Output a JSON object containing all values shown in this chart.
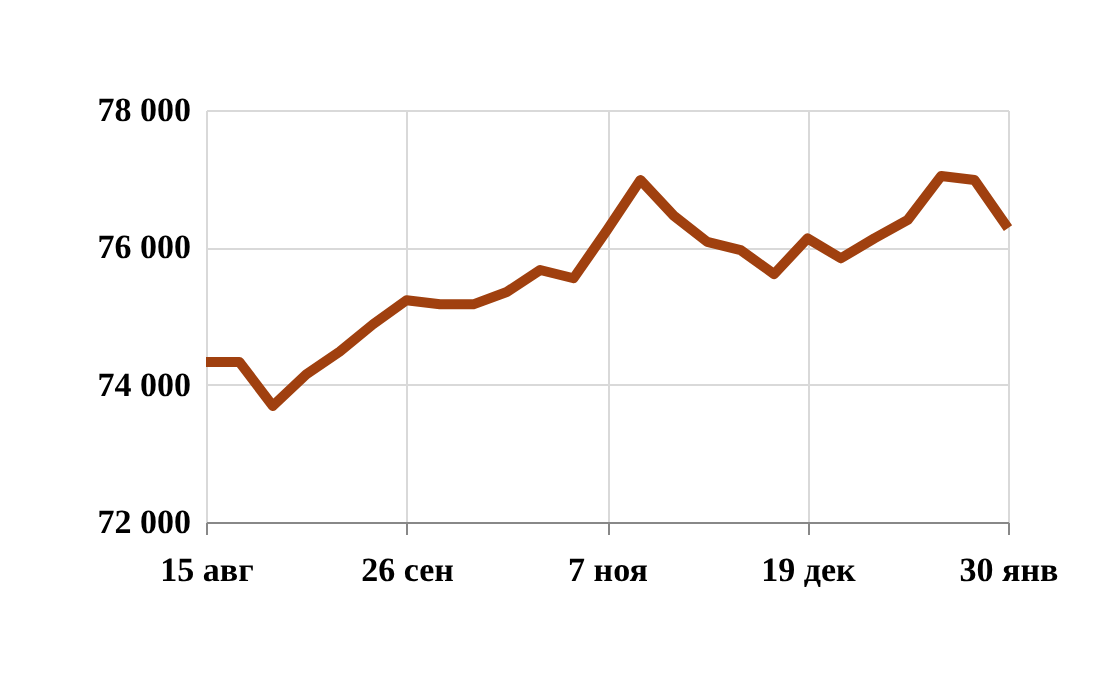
{
  "chart_data": {
    "type": "line",
    "categories": [
      "15 авг",
      null,
      null,
      null,
      null,
      null,
      "26 сен",
      null,
      null,
      null,
      null,
      null,
      "7 ноя",
      null,
      null,
      null,
      null,
      null,
      "19 дек",
      null,
      null,
      null,
      null,
      null,
      "30 янв"
    ],
    "series": [
      {
        "color": "#a0400f",
        "values": [
          74330,
          74330,
          73690,
          74150,
          74480,
          74880,
          75230,
          75170,
          75170,
          75350,
          75670,
          75550,
          76250,
          76980,
          76460,
          76080,
          75960,
          75610,
          76130,
          75840,
          76130,
          76400,
          77040,
          76980,
          76280
        ]
      }
    ],
    "ylim": [
      72000,
      78000
    ],
    "yticks": [
      {
        "value": 72000,
        "label": "72 000"
      },
      {
        "value": 74000,
        "label": "74 000"
      },
      {
        "value": 76000,
        "label": "76 000"
      },
      {
        "value": 78000,
        "label": "78 000"
      }
    ],
    "grid": true,
    "marker": "none",
    "line_style": "solid"
  }
}
